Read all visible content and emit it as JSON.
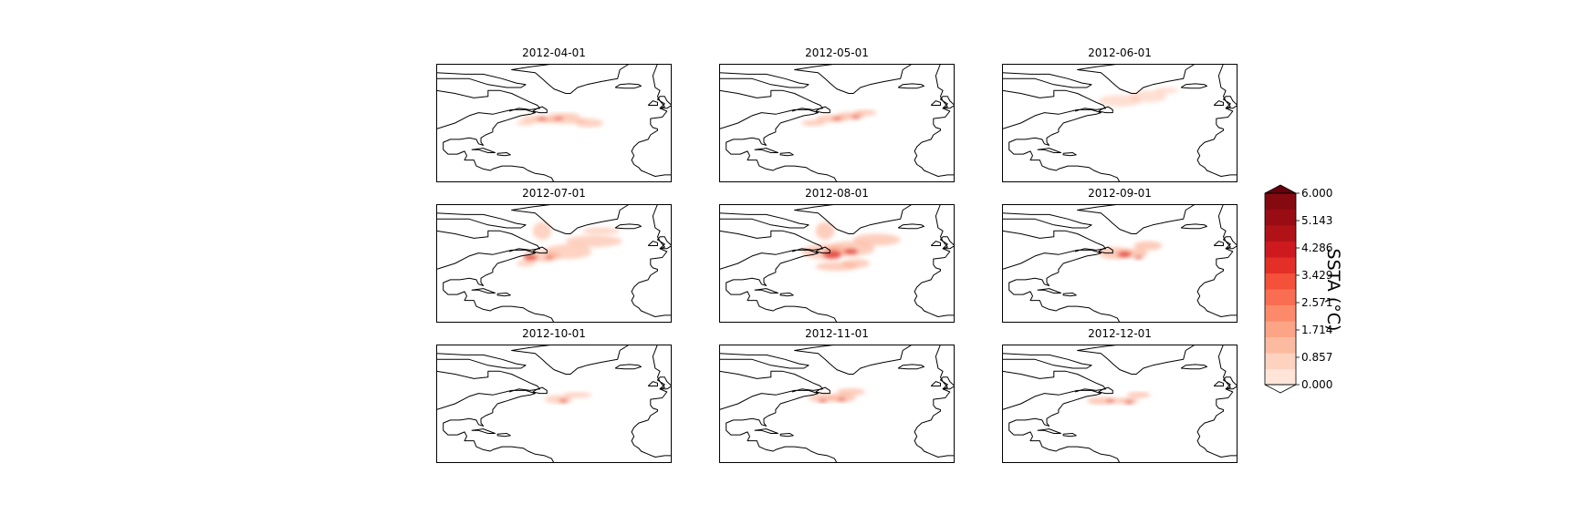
{
  "panels": [
    {
      "title": "2012-04-01",
      "blobs": [
        [
          -58,
          43,
          6,
          2
        ],
        [
          -54,
          42,
          5,
          2
        ],
        [
          -45,
          42,
          9,
          2.5
        ],
        [
          -46,
          45,
          7,
          2
        ],
        [
          -35,
          40,
          6,
          3
        ],
        [
          -62,
          40,
          4,
          1.5
        ]
      ],
      "hot": [
        [
          -55,
          43,
          2,
          1
        ],
        [
          -48,
          43,
          2,
          1
        ]
      ],
      "intensity": 0.55
    },
    {
      "title": "2012-05-01",
      "blobs": [
        [
          -60,
          40,
          5,
          2
        ],
        [
          -52,
          43,
          7,
          2.5
        ],
        [
          -44,
          45,
          6,
          2.5
        ],
        [
          -38,
          47,
          5,
          2
        ]
      ],
      "hot": [
        [
          -50,
          43,
          2,
          1
        ],
        [
          -42,
          44,
          2,
          1
        ]
      ],
      "intensity": 0.6
    },
    {
      "title": "2012-06-01",
      "blobs": [
        [
          -50,
          55,
          9,
          4
        ],
        [
          -38,
          58,
          8,
          4
        ],
        [
          -30,
          62,
          5,
          2
        ]
      ],
      "hot": [],
      "intensity": 0.4
    },
    {
      "title": "2012-07-01",
      "blobs": [
        [
          -55,
          45,
          8,
          4
        ],
        [
          -44,
          48,
          10,
          5
        ],
        [
          -33,
          55,
          12,
          4
        ],
        [
          -55,
          62,
          4,
          6
        ],
        [
          -30,
          62,
          8,
          2
        ],
        [
          -62,
          40,
          4,
          2
        ]
      ],
      "hot": [
        [
          -60,
          44,
          3,
          2
        ],
        [
          -52,
          44,
          2,
          1
        ]
      ],
      "intensity": 0.55
    },
    {
      "title": "2012-08-01",
      "blobs": [
        [
          -55,
          48,
          10,
          5
        ],
        [
          -44,
          50,
          10,
          5
        ],
        [
          -33,
          56,
          10,
          4
        ],
        [
          -55,
          62,
          4,
          6
        ],
        [
          -50,
          38,
          9,
          3
        ],
        [
          -42,
          40,
          6,
          3
        ]
      ],
      "hot": [
        [
          -52,
          46,
          4,
          3
        ],
        [
          -44,
          48,
          3,
          2
        ]
      ],
      "intensity": 0.6
    },
    {
      "title": "2012-09-01",
      "blobs": [
        [
          -52,
          47,
          7,
          4
        ],
        [
          -44,
          47,
          6,
          3
        ],
        [
          -38,
          52,
          6,
          3
        ]
      ],
      "hot": [
        [
          -48,
          46,
          3,
          2
        ],
        [
          -42,
          44,
          2,
          1
        ]
      ],
      "intensity": 0.65
    },
    {
      "title": "2012-10-01",
      "blobs": [
        [
          -48,
          43,
          6,
          3
        ],
        [
          -40,
          46,
          6,
          2
        ]
      ],
      "hot": [
        [
          -46,
          42,
          2,
          1
        ]
      ],
      "intensity": 0.5
    },
    {
      "title": "2012-11-01",
      "blobs": [
        [
          -56,
          44,
          6,
          3
        ],
        [
          -48,
          44,
          6,
          3
        ],
        [
          -44,
          48,
          6,
          2.5
        ]
      ],
      "hot": [
        [
          -56,
          42,
          2,
          1
        ],
        [
          -48,
          43,
          2,
          1
        ]
      ],
      "intensity": 0.6
    },
    {
      "title": "2012-12-01",
      "blobs": [
        [
          -58,
          42,
          6,
          2.5
        ],
        [
          -48,
          42,
          6,
          2
        ],
        [
          -42,
          46,
          5,
          2
        ]
      ],
      "hot": [
        [
          -54,
          42,
          2,
          1
        ],
        [
          -46,
          41,
          2,
          1
        ]
      ],
      "intensity": 0.65
    }
  ],
  "colorbar": {
    "label": "SSTA (°C)",
    "ticks": [
      "6.000",
      "5.143",
      "4.286",
      "3.429",
      "2.571",
      "1.714",
      "0.857",
      "0.000"
    ],
    "colors": [
      "#fee5d8",
      "#fdd2bf",
      "#fcbba1",
      "#fca486",
      "#fc8a6a",
      "#f96e52",
      "#f4503a",
      "#e32f27",
      "#ce1a1e",
      "#b11218",
      "#9a0c14",
      "#850a10"
    ],
    "over_color": "#67000d",
    "under_color": "#ffffff"
  },
  "map_extent": {
    "lon": [
      -100,
      0
    ],
    "lat": [
      0,
      80
    ]
  }
}
